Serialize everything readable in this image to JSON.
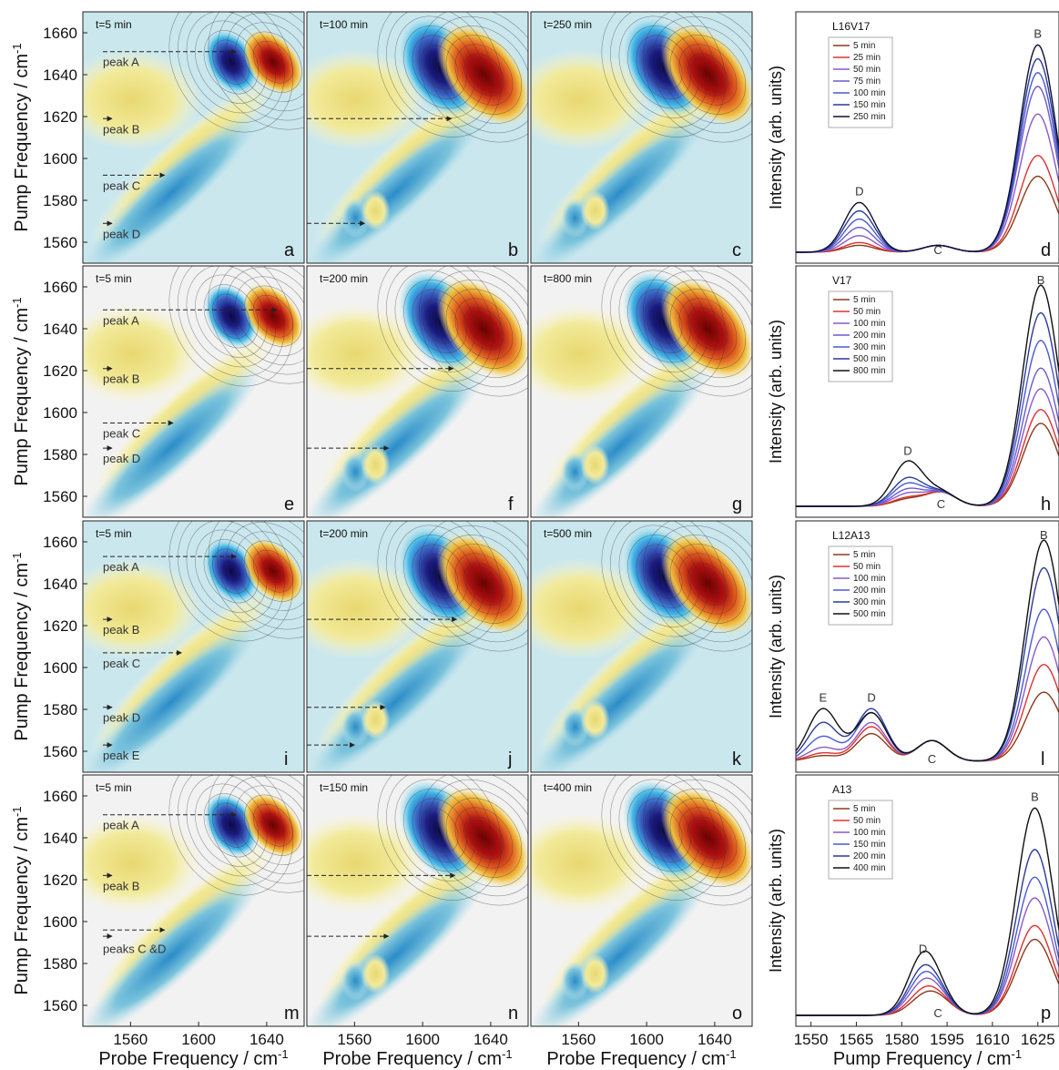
{
  "chart_data": {
    "type": "heatmap",
    "contour_panel_axes": {
      "xlabel": "Probe Frequency / cm",
      "xlabel_sup": "-1",
      "ylabel": "Pump Frequency / cm",
      "ylabel_sup": "-1",
      "xticks": [
        1560,
        1600,
        1640
      ],
      "yticks": [
        1560,
        1580,
        1600,
        1620,
        1640,
        1660
      ],
      "xlim": [
        1532,
        1662
      ],
      "ylim": [
        1550,
        1670
      ]
    },
    "spectrum_axes": {
      "xlabel": "Pump Frequency / cm",
      "xlabel_sup": "-1",
      "ylabel": "Intensity (arb. units)",
      "xticks": [
        1550,
        1565,
        1580,
        1595,
        1610,
        1625
      ],
      "xlim": [
        1545,
        1632
      ]
    },
    "rows": [
      {
        "panels": [
          {
            "letter": "a",
            "time": "t=5 min",
            "peaks": [
              {
                "label": "peak A",
                "y": 1651
              },
              {
                "label": "peak B",
                "y": 1619
              },
              {
                "label": "peak C",
                "y": 1592
              },
              {
                "label": "peak D",
                "y": 1569
              }
            ],
            "arrows": [
              {
                "y": 1651,
                "to": 1622
              },
              {
                "y": 1619,
                "to": 1540
              },
              {
                "y": 1592,
                "to": 1580
              },
              {
                "y": 1569,
                "to": 1545
              }
            ]
          },
          {
            "letter": "b",
            "time": "t=100 min",
            "arrows": [
              {
                "y": 1619,
                "to": 1617
              },
              {
                "y": 1569,
                "to": 1566
              }
            ]
          },
          {
            "letter": "c",
            "time": "t=250 min",
            "arrows": []
          }
        ],
        "spectrum": {
          "letter": "d",
          "title": "L16V17",
          "legend": [
            "5 min",
            "25 min",
            "50 min",
            "75 min",
            "100 min",
            "150 min",
            "250 min"
          ],
          "colors": [
            "#8b3a1a",
            "#e03030",
            "#8a5ac8",
            "#6a5ad0",
            "#4a5ad0",
            "#2a3a9a",
            "#101030"
          ],
          "peak_labels": [
            {
              "label": "D",
              "x": 1566
            },
            {
              "label": "C",
              "x": 1592
            },
            {
              "label": "B",
              "x": 1625
            }
          ],
          "series_peaks": [
            {
              "D": 0.05,
              "C": 0.05,
              "B": 0.55
            },
            {
              "D": 0.07,
              "C": 0.05,
              "B": 0.7
            },
            {
              "D": 0.12,
              "C": 0.05,
              "B": 1.0
            },
            {
              "D": 0.18,
              "C": 0.05,
              "B": 1.2
            },
            {
              "D": 0.24,
              "C": 0.05,
              "B": 1.3
            },
            {
              "D": 0.3,
              "C": 0.05,
              "B": 1.4
            },
            {
              "D": 0.36,
              "C": 0.05,
              "B": 1.5
            }
          ]
        }
      },
      {
        "panels": [
          {
            "letter": "e",
            "time": "t=5 min",
            "peaks": [
              {
                "label": "peak A",
                "y": 1649
              },
              {
                "label": "peak B",
                "y": 1621
              },
              {
                "label": "peak C",
                "y": 1595
              },
              {
                "label": "peak D",
                "y": 1583
              }
            ],
            "arrows": [
              {
                "y": 1649,
                "to": 1646
              },
              {
                "y": 1621,
                "to": 1540
              },
              {
                "y": 1595,
                "to": 1585
              },
              {
                "y": 1583,
                "to": 1545
              }
            ]
          },
          {
            "letter": "f",
            "time": "t=200 min",
            "arrows": [
              {
                "y": 1621,
                "to": 1618
              },
              {
                "y": 1583,
                "to": 1580
              }
            ]
          },
          {
            "letter": "g",
            "time": "t=800 min",
            "arrows": []
          }
        ],
        "spectrum": {
          "letter": "h",
          "title": "V17",
          "legend": [
            "5 min",
            "50 min",
            "100 min",
            "200 min",
            "300 min",
            "500 min",
            "800 min"
          ],
          "colors": [
            "#8b3a1a",
            "#e03030",
            "#8a5ac8",
            "#6a5ad0",
            "#4a5ad0",
            "#2a3a9a",
            "#101010"
          ],
          "peak_labels": [
            {
              "label": "D",
              "x": 1582
            },
            {
              "label": "C",
              "x": 1593
            },
            {
              "label": "B",
              "x": 1626
            }
          ],
          "series_peaks": [
            {
              "D": 0.05,
              "C": 0.1,
              "B": 0.6
            },
            {
              "D": 0.06,
              "C": 0.1,
              "B": 0.7
            },
            {
              "D": 0.09,
              "C": 0.1,
              "B": 0.85
            },
            {
              "D": 0.12,
              "C": 0.1,
              "B": 1.0
            },
            {
              "D": 0.16,
              "C": 0.1,
              "B": 1.2
            },
            {
              "D": 0.2,
              "C": 0.1,
              "B": 1.4
            },
            {
              "D": 0.32,
              "C": 0.1,
              "B": 1.6
            }
          ]
        }
      },
      {
        "panels": [
          {
            "letter": "i",
            "time": "t=5 min",
            "peaks": [
              {
                "label": "peak A",
                "y": 1653
              },
              {
                "label": "peak B",
                "y": 1623
              },
              {
                "label": "peak C",
                "y": 1607
              },
              {
                "label": "peak D",
                "y": 1581
              },
              {
                "label": "peak E",
                "y": 1563
              }
            ],
            "arrows": [
              {
                "y": 1653,
                "to": 1622
              },
              {
                "y": 1623,
                "to": 1540
              },
              {
                "y": 1607,
                "to": 1590
              },
              {
                "y": 1581,
                "to": 1545
              },
              {
                "y": 1563,
                "to": 1545
              }
            ]
          },
          {
            "letter": "j",
            "time": "t=200 min",
            "arrows": [
              {
                "y": 1623,
                "to": 1620
              },
              {
                "y": 1581,
                "to": 1578
              },
              {
                "y": 1563,
                "to": 1560
              }
            ]
          },
          {
            "letter": "k",
            "time": "t=500 min",
            "arrows": []
          }
        ],
        "spectrum": {
          "letter": "l",
          "title": "L12A13",
          "legend": [
            "5 min",
            "50 min",
            "100 min",
            "200 min",
            "300 min",
            "500 min"
          ],
          "colors": [
            "#8b3a1a",
            "#e03030",
            "#8a5ac8",
            "#4a5ad0",
            "#2a3a9a",
            "#101010"
          ],
          "peak_labels": [
            {
              "label": "E",
              "x": 1554
            },
            {
              "label": "D",
              "x": 1570
            },
            {
              "label": "C",
              "x": 1590
            },
            {
              "label": "B",
              "x": 1627
            }
          ],
          "series_peaks": [
            {
              "E": 0.04,
              "D": 0.2,
              "C": 0.15,
              "B": 0.5
            },
            {
              "E": 0.06,
              "D": 0.25,
              "C": 0.15,
              "B": 0.7
            },
            {
              "E": 0.1,
              "D": 0.28,
              "C": 0.15,
              "B": 0.9
            },
            {
              "E": 0.18,
              "D": 0.35,
              "C": 0.15,
              "B": 1.1
            },
            {
              "E": 0.28,
              "D": 0.38,
              "C": 0.15,
              "B": 1.4
            },
            {
              "E": 0.38,
              "D": 0.35,
              "C": 0.15,
              "B": 1.6
            }
          ]
        }
      },
      {
        "panels": [
          {
            "letter": "m",
            "time": "t=5 min",
            "peaks": [
              {
                "label": "peak A",
                "y": 1651
              },
              {
                "label": "peak B",
                "y": 1622
              },
              {
                "label": "peaks C &D",
                "y": 1592
              }
            ],
            "arrows": [
              {
                "y": 1651,
                "to": 1622
              },
              {
                "y": 1622,
                "to": 1540
              },
              {
                "y": 1596,
                "to": 1580
              },
              {
                "y": 1593,
                "to": 1545
              }
            ]
          },
          {
            "letter": "n",
            "time": "t=150 min",
            "arrows": [
              {
                "y": 1622,
                "to": 1619
              },
              {
                "y": 1593,
                "to": 1580
              }
            ]
          },
          {
            "letter": "o",
            "time": "t=400 min",
            "arrows": []
          }
        ],
        "spectrum": {
          "letter": "p",
          "title": "A13",
          "legend": [
            "5 min",
            "50 min",
            "100 min",
            "150 min",
            "200 min",
            "400 min"
          ],
          "colors": [
            "#8b3a1a",
            "#e03030",
            "#8a5ac8",
            "#4a5ad0",
            "#2a3a9a",
            "#101010"
          ],
          "peak_labels": [
            {
              "label": "D",
              "x": 1587
            },
            {
              "label": "C",
              "x": 1592
            },
            {
              "label": "B",
              "x": 1624
            }
          ],
          "series_peaks": [
            {
              "D": 0.1,
              "C": 0.1,
              "B": 0.55
            },
            {
              "D": 0.14,
              "C": 0.1,
              "B": 0.65
            },
            {
              "D": 0.2,
              "C": 0.1,
              "B": 0.85
            },
            {
              "D": 0.25,
              "C": 0.1,
              "B": 1.0
            },
            {
              "D": 0.3,
              "C": 0.1,
              "B": 1.2
            },
            {
              "D": 0.4,
              "C": 0.1,
              "B": 1.5
            }
          ]
        }
      }
    ]
  }
}
